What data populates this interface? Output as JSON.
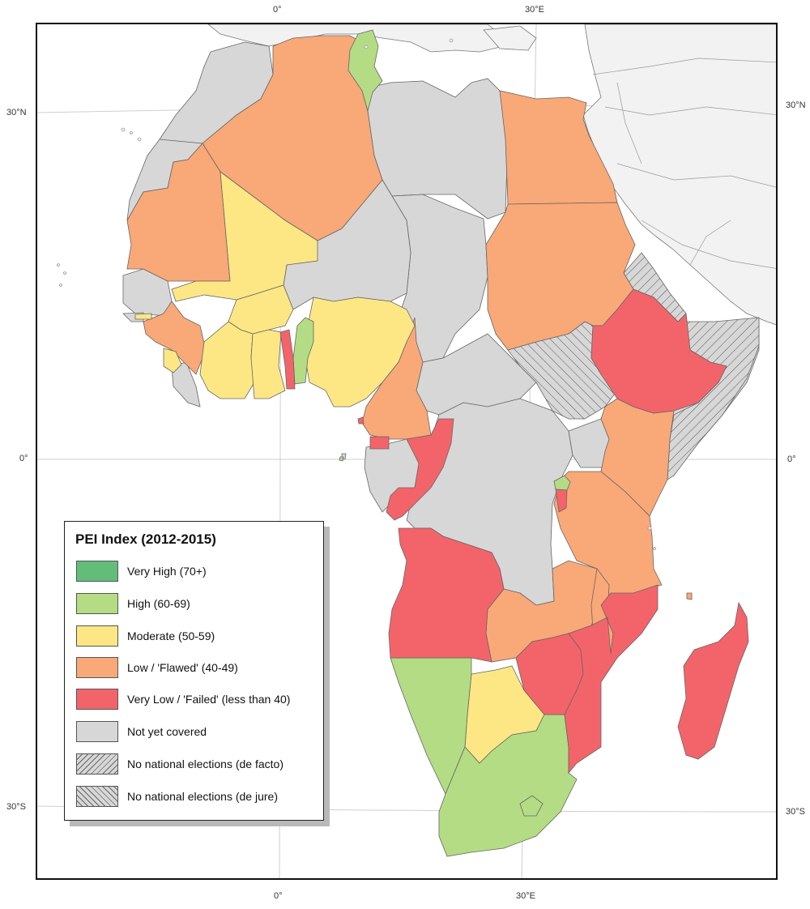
{
  "graticule": {
    "top_lon_0": "0°",
    "top_lon_30e": "30°E",
    "bottom_lon_0": "0°",
    "bottom_lon_30e": "30°E",
    "left_lat_30n": "30°N",
    "left_lat_0": "0°",
    "left_lat_30s": "30°S",
    "right_lat_30n": "30°N",
    "right_lat_0": "0°",
    "right_lat_30s": "30°S"
  },
  "colors": {
    "very_high": "#62bd7a",
    "high": "#b3dc84",
    "moderate": "#fde784",
    "low": "#f9a878",
    "very_low": "#f3646a",
    "not_covered": "#d7d7d7",
    "outside_region": "#f2f2f2",
    "border": "#666666"
  },
  "legend": {
    "title": "PEI Index (2012-2015)",
    "items": [
      {
        "label": "Very High (70+)",
        "color": "#62bd7a",
        "pattern": "none"
      },
      {
        "label": "High (60-69)",
        "color": "#b3dc84",
        "pattern": "none"
      },
      {
        "label": "Moderate (50-59)",
        "color": "#fde784",
        "pattern": "none"
      },
      {
        "label": "Low / 'Flawed' (40-49)",
        "color": "#f9a878",
        "pattern": "none"
      },
      {
        "label": "Very Low / 'Failed' (less than 40)",
        "color": "#f3646a",
        "pattern": "none"
      },
      {
        "label": "Not yet covered",
        "color": "#d7d7d7",
        "pattern": "none"
      },
      {
        "label": "No national elections (de facto)",
        "color": "#d7d7d7",
        "pattern": "hatch-forward"
      },
      {
        "label": "No national elections (de jure)",
        "color": "#d7d7d7",
        "pattern": "hatch-back"
      }
    ]
  }
}
